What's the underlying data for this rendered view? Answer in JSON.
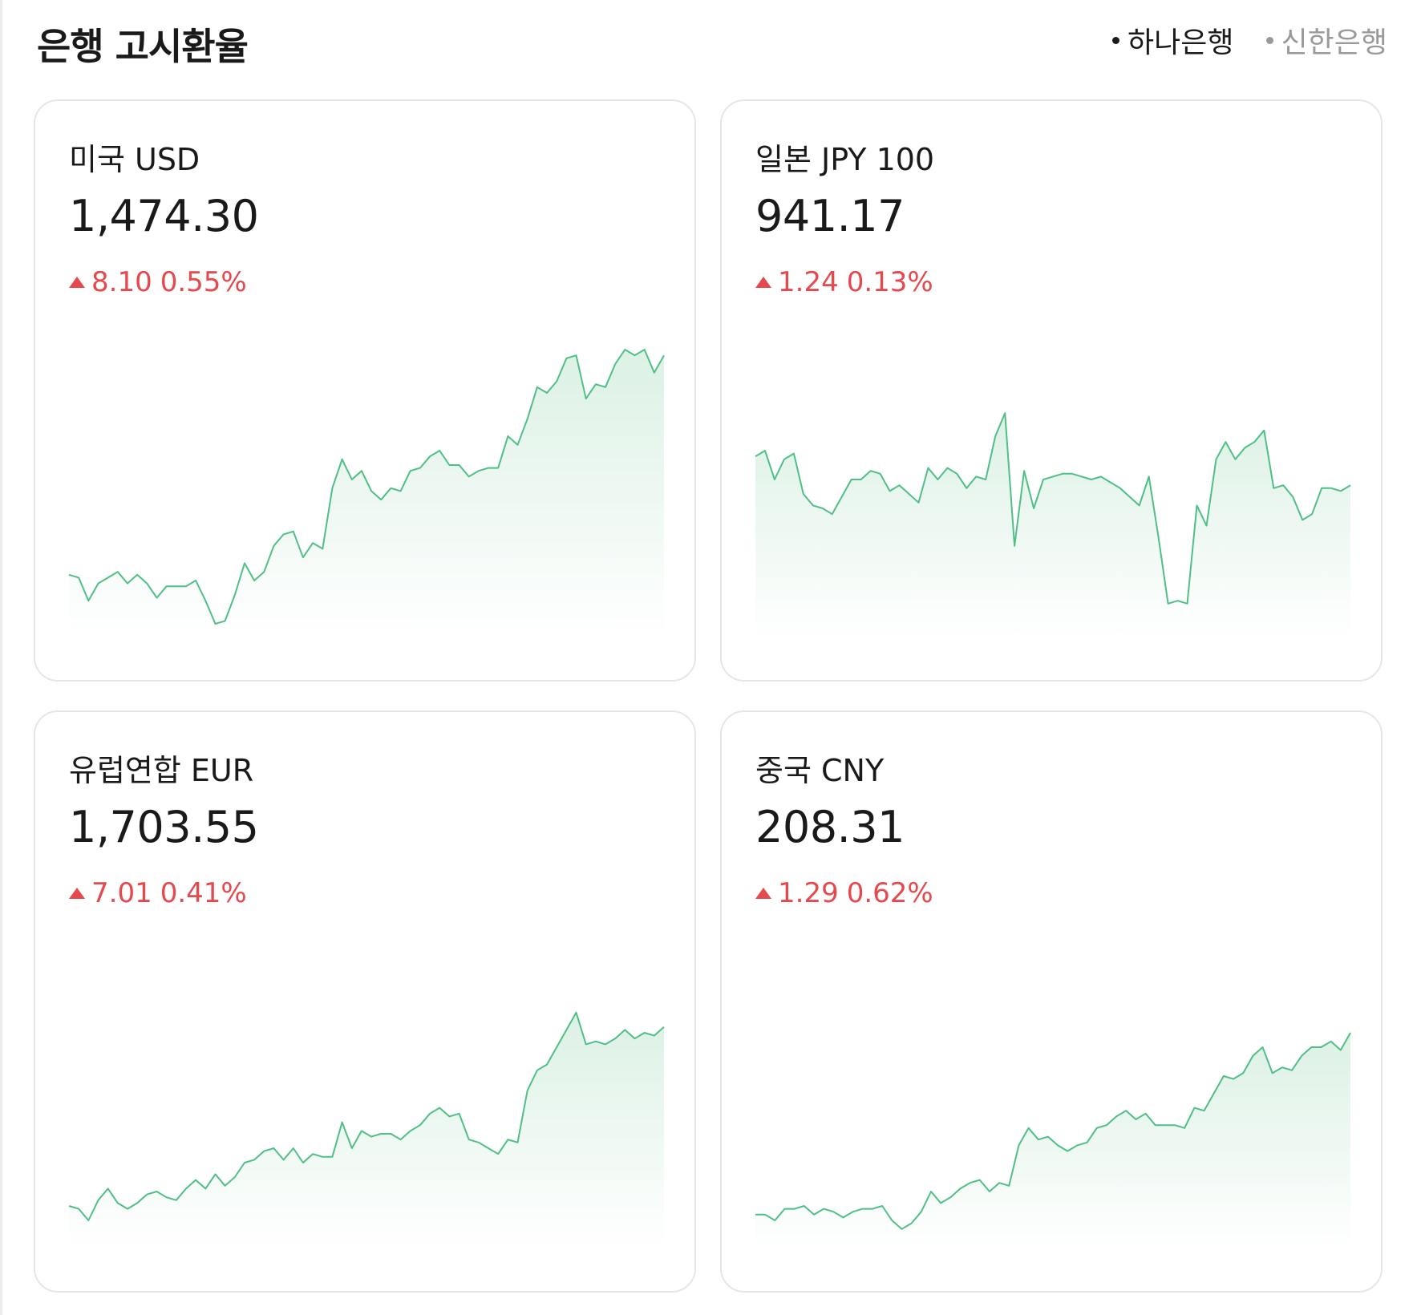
{
  "header": {
    "title": "은행 고시환율",
    "banks": [
      {
        "label": "하나은행",
        "active": true
      },
      {
        "label": "신한은행",
        "active": false
      }
    ]
  },
  "colors": {
    "up": "#e5484d",
    "line": "#4fbf85",
    "fill_top": "#dcf1e5"
  },
  "cards": [
    {
      "name": "미국 USD",
      "rate": "1,474.30",
      "change": "8.10",
      "change_pct": "0.55%",
      "direction": "up",
      "series": [
        0.22,
        0.21,
        0.13,
        0.19,
        0.21,
        0.23,
        0.19,
        0.22,
        0.19,
        0.14,
        0.18,
        0.18,
        0.18,
        0.2,
        0.13,
        0.05,
        0.06,
        0.15,
        0.26,
        0.2,
        0.23,
        0.32,
        0.36,
        0.37,
        0.28,
        0.33,
        0.31,
        0.52,
        0.62,
        0.55,
        0.58,
        0.51,
        0.48,
        0.52,
        0.51,
        0.58,
        0.59,
        0.63,
        0.65,
        0.6,
        0.6,
        0.56,
        0.58,
        0.59,
        0.59,
        0.7,
        0.67,
        0.76,
        0.87,
        0.85,
        0.89,
        0.97,
        0.98,
        0.83,
        0.88,
        0.87,
        0.95,
        1.0,
        0.98,
        1.0,
        0.92,
        0.98
      ]
    },
    {
      "name": "일본 JPY 100",
      "rate": "941.17",
      "change": "1.24",
      "change_pct": "0.13%",
      "direction": "up",
      "series": [
        0.63,
        0.65,
        0.55,
        0.62,
        0.64,
        0.5,
        0.46,
        0.45,
        0.43,
        0.49,
        0.55,
        0.55,
        0.58,
        0.57,
        0.51,
        0.53,
        0.5,
        0.47,
        0.59,
        0.55,
        0.59,
        0.57,
        0.52,
        0.56,
        0.55,
        0.7,
        0.78,
        0.32,
        0.58,
        0.45,
        0.55,
        0.56,
        0.57,
        0.57,
        0.56,
        0.55,
        0.56,
        0.54,
        0.52,
        0.49,
        0.46,
        0.56,
        0.35,
        0.12,
        0.13,
        0.12,
        0.46,
        0.39,
        0.62,
        0.68,
        0.62,
        0.66,
        0.68,
        0.72,
        0.52,
        0.53,
        0.49,
        0.41,
        0.43,
        0.52,
        0.52,
        0.51,
        0.53
      ]
    },
    {
      "name": "유럽연합 EUR",
      "rate": "1,703.55",
      "change": "7.01",
      "change_pct": "0.41%",
      "direction": "up",
      "series": [
        0.15,
        0.14,
        0.1,
        0.17,
        0.21,
        0.16,
        0.14,
        0.16,
        0.19,
        0.2,
        0.18,
        0.17,
        0.21,
        0.24,
        0.21,
        0.26,
        0.22,
        0.25,
        0.3,
        0.31,
        0.34,
        0.35,
        0.31,
        0.35,
        0.3,
        0.33,
        0.32,
        0.32,
        0.44,
        0.35,
        0.41,
        0.39,
        0.4,
        0.4,
        0.38,
        0.41,
        0.43,
        0.47,
        0.49,
        0.46,
        0.47,
        0.38,
        0.37,
        0.35,
        0.33,
        0.38,
        0.37,
        0.55,
        0.62,
        0.64,
        0.7,
        0.76,
        0.82,
        0.71,
        0.72,
        0.71,
        0.73,
        0.76,
        0.73,
        0.75,
        0.74,
        0.77
      ]
    },
    {
      "name": "중국 CNY",
      "rate": "208.31",
      "change": "1.29",
      "change_pct": "0.62%",
      "direction": "up",
      "series": [
        0.12,
        0.12,
        0.1,
        0.14,
        0.14,
        0.15,
        0.12,
        0.14,
        0.13,
        0.11,
        0.13,
        0.14,
        0.14,
        0.15,
        0.1,
        0.07,
        0.09,
        0.13,
        0.2,
        0.16,
        0.18,
        0.21,
        0.23,
        0.24,
        0.2,
        0.23,
        0.22,
        0.36,
        0.42,
        0.38,
        0.39,
        0.36,
        0.34,
        0.36,
        0.37,
        0.42,
        0.43,
        0.46,
        0.48,
        0.45,
        0.47,
        0.43,
        0.43,
        0.43,
        0.42,
        0.49,
        0.48,
        0.54,
        0.6,
        0.59,
        0.61,
        0.67,
        0.7,
        0.61,
        0.63,
        0.62,
        0.67,
        0.7,
        0.7,
        0.72,
        0.69,
        0.75
      ]
    }
  ]
}
